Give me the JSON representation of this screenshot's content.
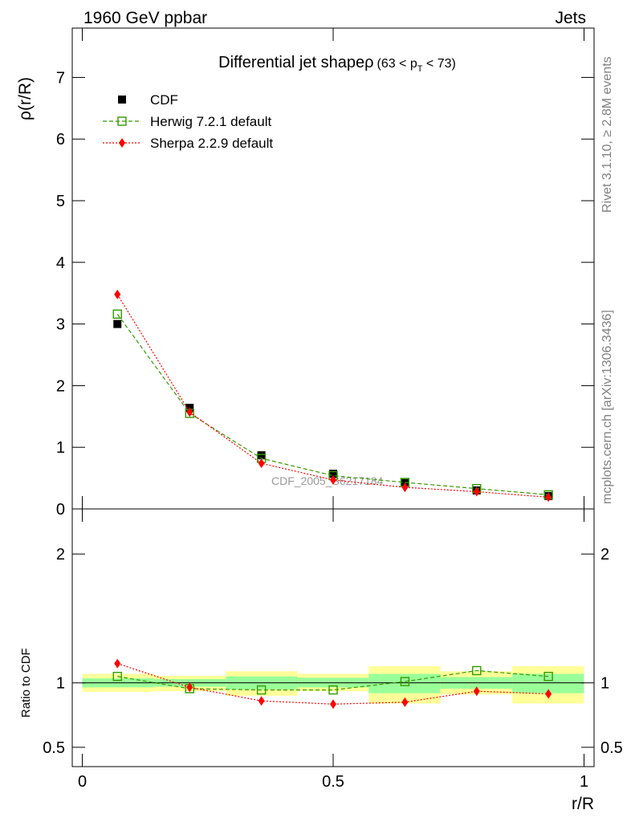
{
  "header": {
    "left": "1960 GeV ppbar",
    "right": "Jets",
    "side_top": "Rivet 3.1.10, ≥ 2.8M events",
    "side_bottom": "mcplots.cern.ch [arXiv:1306.3436]",
    "watermark": "CDF_2005_S6217184"
  },
  "chart_data": [
    {
      "type": "scatter",
      "title": "Differential jet shapeρ",
      "title_cut": "(63 < p",
      "title_cut_sub": "T",
      "title_cut_end": " < 73)",
      "xlabel": "",
      "ylabel": "ρ(r/R)",
      "xlim": [
        -0.02,
        1.02
      ],
      "ylim": [
        0,
        7.8
      ],
      "ytick_values": [
        0,
        1,
        2,
        3,
        4,
        5,
        6,
        7
      ],
      "ytick_labels": [
        "0",
        "1",
        "2",
        "3",
        "4",
        "5",
        "6",
        "7"
      ],
      "legend_position": "top-left",
      "series": [
        {
          "name": "CDF",
          "color": "#000000",
          "marker": "filled-square",
          "x": [
            0.07,
            0.214,
            0.357,
            0.5,
            0.643,
            0.786,
            0.929
          ],
          "y": [
            3.0,
            1.64,
            0.87,
            0.57,
            0.42,
            0.3,
            0.21
          ]
        },
        {
          "name": "Herwig 7.2.1 default",
          "color": "#339900",
          "marker": "open-square",
          "line": "dashed",
          "x": [
            0.07,
            0.214,
            0.357,
            0.5,
            0.643,
            0.786,
            0.929
          ],
          "y": [
            3.16,
            1.55,
            0.82,
            0.54,
            0.43,
            0.33,
            0.23
          ]
        },
        {
          "name": "Sherpa 2.2.9 default",
          "color": "#ff0000",
          "marker": "diamond",
          "line": "dotted",
          "x": [
            0.07,
            0.214,
            0.357,
            0.5,
            0.643,
            0.786,
            0.929
          ],
          "y": [
            3.48,
            1.57,
            0.74,
            0.47,
            0.35,
            0.28,
            0.19
          ]
        }
      ]
    },
    {
      "type": "scatter",
      "title": "",
      "xlabel": "r/R",
      "ylabel": "Ratio to CDF",
      "xlim": [
        -0.02,
        1.02
      ],
      "ylim": [
        0.35,
        2.35
      ],
      "ytick_values": [
        0.5,
        1,
        2
      ],
      "ytick_labels": [
        "0.5",
        "1",
        "2"
      ],
      "xtick_values": [
        0,
        0.5,
        1
      ],
      "xtick_labels": [
        "0",
        "0.5",
        "1"
      ],
      "bands": {
        "yellow_color": "#ffff99",
        "green_color": "#99ff99",
        "bins": [
          {
            "x0": 0.0,
            "x1": 0.143,
            "y_lo": 0.93,
            "y_hi": 1.07,
            "g_lo": 0.965,
            "g_hi": 1.035
          },
          {
            "x0": 0.143,
            "x1": 0.286,
            "y_lo": 0.935,
            "y_hi": 1.055,
            "g_lo": 0.97,
            "g_hi": 1.03
          },
          {
            "x0": 0.286,
            "x1": 0.429,
            "y_lo": 0.9,
            "y_hi": 1.09,
            "g_lo": 0.95,
            "g_hi": 1.05
          },
          {
            "x0": 0.429,
            "x1": 0.571,
            "y_lo": 0.935,
            "y_hi": 1.07,
            "g_lo": 0.965,
            "g_hi": 1.04
          },
          {
            "x0": 0.571,
            "x1": 0.714,
            "y_lo": 0.84,
            "y_hi": 1.13,
            "g_lo": 0.92,
            "g_hi": 1.07
          },
          {
            "x0": 0.714,
            "x1": 0.857,
            "y_lo": 0.91,
            "y_hi": 1.09,
            "g_lo": 0.955,
            "g_hi": 1.045
          },
          {
            "x0": 0.857,
            "x1": 1.0,
            "y_lo": 0.84,
            "y_hi": 1.13,
            "g_lo": 0.92,
            "g_hi": 1.07
          }
        ]
      },
      "series": [
        {
          "name": "Herwig 7.2.1 default",
          "color": "#339900",
          "marker": "open-square",
          "line": "dashed",
          "x": [
            0.07,
            0.214,
            0.357,
            0.5,
            0.643,
            0.786,
            0.929
          ],
          "y": [
            1.05,
            0.955,
            0.945,
            0.945,
            1.01,
            1.095,
            1.05
          ]
        },
        {
          "name": "Sherpa 2.2.9 default",
          "color": "#ff0000",
          "marker": "diamond",
          "line": "dotted",
          "x": [
            0.07,
            0.214,
            0.357,
            0.5,
            0.643,
            0.786,
            0.929
          ],
          "y": [
            1.15,
            0.965,
            0.86,
            0.835,
            0.85,
            0.935,
            0.915
          ]
        }
      ]
    }
  ]
}
